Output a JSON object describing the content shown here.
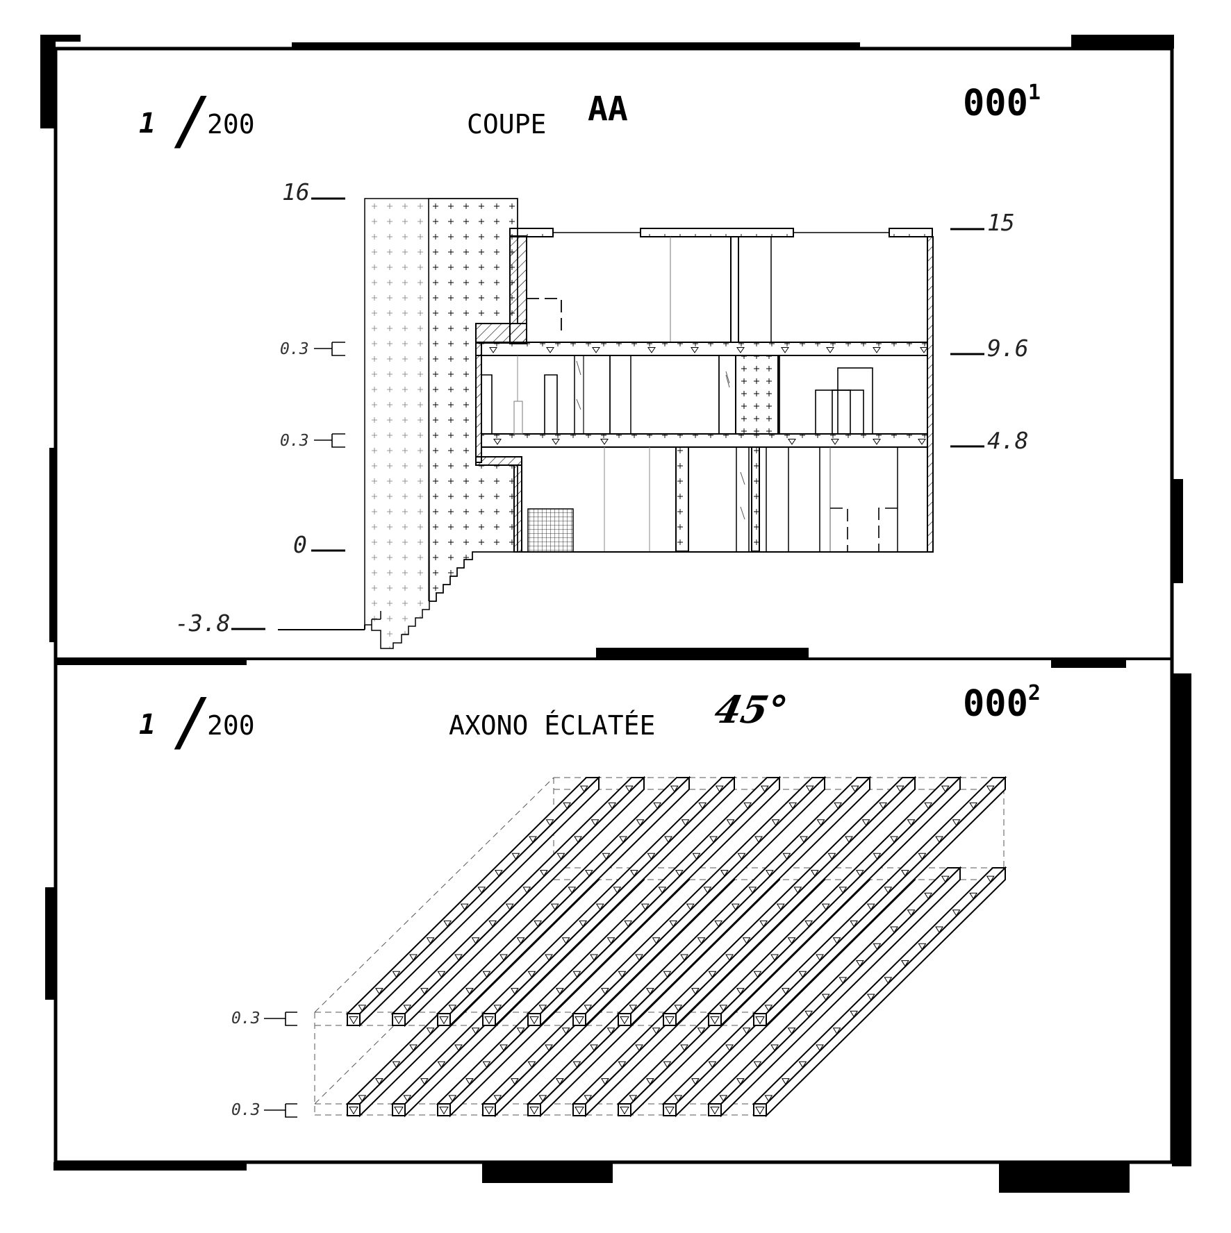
{
  "panel_top": {
    "scale": {
      "numerator": "1",
      "slash": "/",
      "denominator": "200"
    },
    "title": "COUPE",
    "title_tag": "AA",
    "sheet": {
      "number": "000",
      "superscript": "1"
    },
    "levels_left": [
      "16",
      "0",
      "-3.8"
    ],
    "levels_right": [
      "15",
      "9.6",
      "4.8"
    ],
    "slab_marks": [
      "0.3",
      "0.3"
    ]
  },
  "panel_bottom": {
    "scale": {
      "numerator": "1",
      "slash": "/",
      "denominator": "200"
    },
    "title": "AXONO ÉCLATÉE",
    "angle": "45°",
    "sheet": {
      "number": "000",
      "superscript": "2"
    },
    "slab_marks": [
      "0.3",
      "0.3"
    ]
  },
  "colors": {
    "ink": "#000000",
    "paper": "#ffffff",
    "thin": "#555555"
  }
}
